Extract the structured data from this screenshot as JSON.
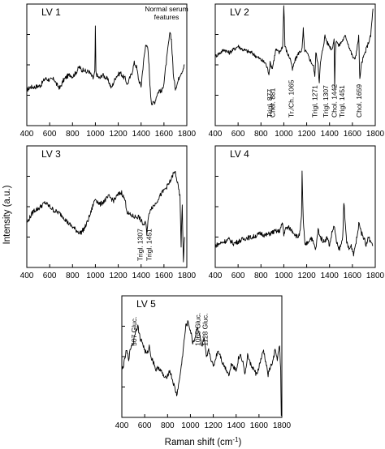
{
  "figure": {
    "y_axis_title": "Intensity (a.u.)",
    "x_axis_title": "Raman shift (cm",
    "x_axis_title_sup": "-1",
    "x_axis_title_close": ")"
  },
  "chart_data": [
    {
      "type": "line",
      "title": "LV 1",
      "xlim": [
        400,
        1800
      ],
      "x_ticks": [
        "400",
        "600",
        "800",
        "1000",
        "1200",
        "1400",
        "1600",
        "1800"
      ],
      "y_label_text": "",
      "grid": false,
      "annotations": [
        {
          "text": "Normal serum features",
          "lines": [
            "Normal serum",
            "features"
          ],
          "x": 1580,
          "orientation": "horizontal"
        }
      ],
      "series": [
        {
          "x": [
            400,
            430,
            470,
            520,
            560,
            600,
            640,
            660,
            690,
            720,
            750,
            780,
            800,
            830,
            860,
            880,
            900,
            920,
            940,
            960,
            980,
            995,
            1000,
            1005,
            1020,
            1040,
            1060,
            1080,
            1100,
            1120,
            1140,
            1160,
            1180,
            1200,
            1220,
            1240,
            1260,
            1280,
            1300,
            1320,
            1340,
            1360,
            1380,
            1400,
            1420,
            1440,
            1450,
            1460,
            1470,
            1480,
            1490,
            1500,
            1520,
            1540,
            1560,
            1580,
            1600,
            1620,
            1640,
            1655,
            1665,
            1675,
            1685,
            1700,
            1720,
            1740,
            1760,
            1780
          ],
          "values": [
            -0.4,
            -0.32,
            -0.32,
            -0.28,
            -0.1,
            -0.14,
            -0.12,
            -0.25,
            -0.35,
            -0.15,
            -0.05,
            0.0,
            -0.05,
            0.05,
            0.2,
            0.1,
            0.15,
            0.05,
            0.1,
            0.0,
            -0.1,
            0.05,
            1.2,
            0.05,
            -0.05,
            -0.1,
            0.0,
            -0.05,
            -0.1,
            -0.2,
            -0.35,
            -0.2,
            -0.05,
            0.0,
            0.05,
            -0.05,
            -0.1,
            -0.25,
            -0.1,
            0.05,
            0.3,
            0.2,
            -0.15,
            -0.3,
            0.3,
            0.75,
            0.8,
            0.6,
            0.2,
            -0.4,
            -0.7,
            -0.75,
            -0.7,
            -0.5,
            -0.4,
            -0.45,
            -0.2,
            0.3,
            0.8,
            1.1,
            0.9,
            0.4,
            -0.1,
            -0.35,
            -0.2,
            0.0,
            0.1,
            0.25
          ]
        }
      ]
    },
    {
      "type": "line",
      "title": "LV 2",
      "xlim": [
        400,
        1800
      ],
      "x_ticks": [
        "400",
        "600",
        "800",
        "1000",
        "1200",
        "1400",
        "1600",
        "1800"
      ],
      "grid": false,
      "annotations": [
        {
          "text": "Trigl. 877",
          "x": 877,
          "orientation": "vertical"
        },
        {
          "text": "Chol. 881",
          "x": 900,
          "orientation": "vertical"
        },
        {
          "text": "Tr./Ch. 1065",
          "x": 1065,
          "orientation": "vertical"
        },
        {
          "text": "Trigl. 1271",
          "x": 1271,
          "orientation": "vertical"
        },
        {
          "text": "Trigl. 1307",
          "x": 1365,
          "orientation": "vertical"
        },
        {
          "text": "Chol. 1442",
          "x": 1442,
          "orientation": "vertical"
        },
        {
          "text": "Trigl. 1451",
          "x": 1510,
          "orientation": "vertical"
        },
        {
          "text": "Chol. 1659",
          "x": 1659,
          "orientation": "vertical"
        }
      ],
      "series": [
        {
          "x": [
            400,
            440,
            480,
            520,
            560,
            600,
            640,
            680,
            720,
            760,
            800,
            840,
            870,
            880,
            900,
            930,
            960,
            990,
            1000,
            1010,
            1030,
            1060,
            1075,
            1100,
            1130,
            1160,
            1170,
            1180,
            1200,
            1230,
            1260,
            1271,
            1280,
            1300,
            1310,
            1320,
            1340,
            1360,
            1380,
            1400,
            1420,
            1440,
            1445,
            1450,
            1460,
            1480,
            1500,
            1520,
            1540,
            1560,
            1580,
            1600,
            1620,
            1640,
            1655,
            1665,
            1680,
            1700,
            1720,
            1740,
            1760,
            1780
          ],
          "values": [
            0.0,
            0.1,
            0.2,
            0.1,
            0.2,
            0.3,
            0.2,
            0.15,
            0.1,
            0.0,
            -0.1,
            -0.2,
            -0.5,
            -0.2,
            -0.35,
            0.2,
            0.1,
            0.3,
            1.6,
            0.3,
            0.1,
            -0.1,
            -0.4,
            -0.1,
            0.1,
            0.2,
            0.8,
            0.2,
            0.1,
            -0.1,
            -0.3,
            -0.6,
            0.1,
            -0.2,
            -0.8,
            -0.2,
            0.2,
            0.6,
            0.4,
            0.3,
            0.2,
            0.5,
            -1.0,
            0.1,
            0.5,
            0.3,
            0.4,
            0.5,
            0.6,
            0.4,
            0.2,
            0.0,
            -0.1,
            0.2,
            0.6,
            -0.7,
            -0.2,
            0.0,
            0.2,
            0.4,
            0.6,
            1.4
          ]
        }
      ]
    },
    {
      "type": "line",
      "title": "LV 3",
      "xlim": [
        400,
        1800
      ],
      "x_ticks": [
        "400",
        "600",
        "800",
        "1000",
        "1200",
        "1400",
        "1600",
        "1800"
      ],
      "grid": false,
      "annotations": [
        {
          "text": "Trigl. 1307",
          "x": 1390,
          "orientation": "vertical"
        },
        {
          "text": "Trigl. 1451",
          "x": 1470,
          "orientation": "vertical"
        }
      ],
      "series": [
        {
          "x": [
            400,
            430,
            460,
            500,
            540,
            560,
            580,
            600,
            640,
            680,
            720,
            760,
            800,
            840,
            870,
            900,
            920,
            940,
            960,
            980,
            1000,
            1040,
            1080,
            1120,
            1160,
            1200,
            1230,
            1260,
            1280,
            1300,
            1340,
            1380,
            1420,
            1440,
            1450,
            1460,
            1480,
            1520,
            1560,
            1600,
            1640,
            1660,
            1680,
            1700,
            1720,
            1740,
            1750,
            1760,
            1770,
            1780
          ],
          "values": [
            -0.25,
            -0.1,
            0.05,
            0.1,
            0.2,
            0.25,
            0.2,
            0.15,
            0.05,
            0.0,
            -0.1,
            -0.25,
            -0.35,
            -0.45,
            -0.5,
            -0.4,
            -0.3,
            -0.15,
            0.0,
            0.2,
            0.35,
            0.2,
            0.3,
            0.4,
            0.3,
            0.45,
            0.5,
            0.3,
            0.0,
            -0.05,
            -0.1,
            -0.1,
            -0.3,
            -0.25,
            -0.5,
            -0.2,
            0.1,
            0.2,
            0.4,
            0.55,
            0.7,
            0.8,
            0.95,
            1.0,
            0.7,
            0.4,
            -0.8,
            0.2,
            -1.2,
            -0.6
          ]
        }
      ]
    },
    {
      "type": "line",
      "title": "LV 4",
      "xlim": [
        400,
        1800
      ],
      "x_ticks": [
        "400",
        "600",
        "800",
        "1000",
        "1200",
        "1400",
        "1600",
        "1800"
      ],
      "grid": false,
      "annotations": [],
      "series": [
        {
          "x": [
            400,
            440,
            480,
            520,
            560,
            600,
            640,
            680,
            720,
            760,
            800,
            840,
            880,
            920,
            960,
            990,
            1000,
            1010,
            1040,
            1080,
            1120,
            1140,
            1155,
            1160,
            1170,
            1185,
            1200,
            1240,
            1280,
            1300,
            1320,
            1350,
            1380,
            1400,
            1420,
            1440,
            1460,
            1480,
            1500,
            1515,
            1525,
            1535,
            1550,
            1570,
            1590,
            1610,
            1640,
            1660,
            1680,
            1700,
            1720,
            1740,
            1760,
            1780
          ],
          "values": [
            -0.3,
            -0.25,
            -0.2,
            -0.15,
            -0.25,
            -0.2,
            -0.15,
            -0.1,
            -0.1,
            -0.05,
            0.0,
            -0.05,
            0.0,
            0.05,
            0.05,
            0.25,
            -0.05,
            0.1,
            0.15,
            0.05,
            -0.1,
            0.0,
            0.4,
            1.5,
            0.3,
            -0.3,
            -0.25,
            -0.1,
            -0.4,
            0.1,
            -0.1,
            -0.2,
            -0.1,
            -0.3,
            0.0,
            0.2,
            -0.2,
            -0.4,
            -0.3,
            -0.1,
            0.8,
            0.3,
            -0.2,
            -0.4,
            -0.3,
            -0.5,
            -0.1,
            0.3,
            0.0,
            -0.1,
            -0.3,
            -0.1,
            -0.2,
            -0.3
          ]
        }
      ]
    },
    {
      "type": "line",
      "title": "LV 5",
      "xlim": [
        400,
        1800
      ],
      "x_ticks": [
        "400",
        "600",
        "800",
        "1000",
        "1200",
        "1400",
        "1600",
        "1800"
      ],
      "grid": false,
      "annotations": [
        {
          "text": "507 Gluc.",
          "x": 507,
          "orientation": "vertical"
        },
        {
          "text": "1065 Gluc.",
          "x": 1065,
          "orientation": "vertical"
        },
        {
          "text": "1128 Gluc.",
          "x": 1128,
          "orientation": "vertical"
        }
      ],
      "series": [
        {
          "x": [
            400,
            420,
            440,
            460,
            480,
            500,
            520,
            540,
            560,
            580,
            600,
            620,
            640,
            660,
            680,
            700,
            720,
            740,
            760,
            780,
            800,
            820,
            840,
            860,
            880,
            900,
            920,
            940,
            960,
            980,
            1000,
            1020,
            1040,
            1060,
            1080,
            1100,
            1120,
            1140,
            1160,
            1180,
            1200,
            1220,
            1240,
            1260,
            1280,
            1300,
            1320,
            1340,
            1360,
            1380,
            1400,
            1420,
            1440,
            1460,
            1480,
            1500,
            1520,
            1540,
            1560,
            1580,
            1600,
            1620,
            1640,
            1660,
            1680,
            1700,
            1720,
            1740,
            1760,
            1780,
            1790,
            1795
          ],
          "values": [
            -0.2,
            0.0,
            0.3,
            0.1,
            0.4,
            0.5,
            0.8,
            0.9,
            0.6,
            0.5,
            0.3,
            0.2,
            0.4,
            0.1,
            0.0,
            -0.2,
            -0.1,
            -0.2,
            -0.3,
            -0.4,
            -0.3,
            -0.2,
            -0.4,
            -0.6,
            -0.8,
            -0.5,
            -0.1,
            0.4,
            0.9,
            1.0,
            0.8,
            0.5,
            0.6,
            0.9,
            0.7,
            0.4,
            0.6,
            0.1,
            0.3,
            0.1,
            -0.1,
            0.1,
            0.3,
            0.2,
            0.0,
            -0.1,
            -0.2,
            -0.3,
            0.0,
            -0.1,
            -0.2,
            0.1,
            0.2,
            0.0,
            -0.3,
            0.2,
            0.0,
            -0.1,
            -0.2,
            -0.3,
            -0.1,
            0.1,
            0.3,
            0.0,
            -0.3,
            -0.1,
            0.0,
            0.3,
            0.1,
            0.4,
            -0.2,
            -1.4
          ]
        }
      ]
    }
  ]
}
